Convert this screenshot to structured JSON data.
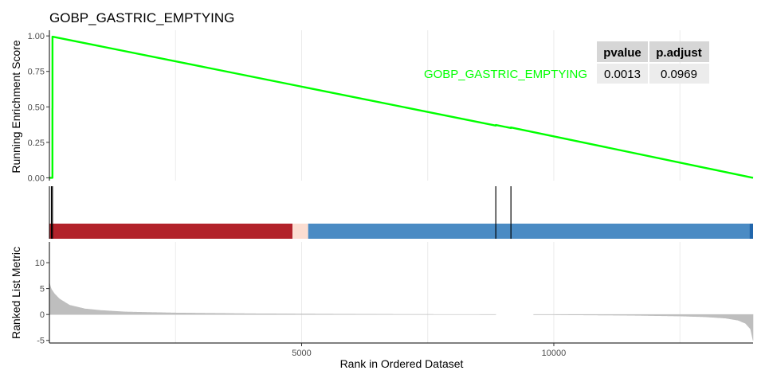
{
  "chart_data": {
    "type": "line",
    "title": "GOBP_GASTRIC_EMPTYING",
    "xlabel": "Rank in Ordered Dataset",
    "x_ticks": [
      5000,
      10000
    ],
    "xlim": [
      0,
      13950
    ],
    "colors": {
      "es_line": "#00FF00",
      "hits": "#000000",
      "bar_red": "#B2222A",
      "bar_light": "#FBDDD1",
      "bar_blue": "#4A8BC4",
      "bar_blue_dark": "#2166AC",
      "metric_fill": "#BEBEBE",
      "grid": "#EBEBEB"
    },
    "panels": {
      "running_es": {
        "ylabel": "Running Enrichment Score",
        "ylim": [
          -0.02,
          1.04
        ],
        "y_ticks": [
          "0.00",
          "0.25",
          "0.50",
          "0.75",
          "1.00"
        ],
        "x": [
          0,
          60,
          60,
          61,
          61,
          8850,
          8851,
          9150,
          9151,
          13950
        ],
        "y": [
          0.0,
          0.0,
          0.49,
          0.49,
          0.995,
          0.368,
          0.372,
          0.351,
          0.355,
          0.0
        ]
      },
      "hits": {
        "positions": [
          40,
          61,
          8850,
          9150
        ]
      },
      "ranked_metric": {
        "ylabel": "Ranked List Metric",
        "ylim": [
          -5.5,
          14
        ],
        "y_ticks": [
          -5,
          0,
          5,
          10
        ],
        "gap_x": [
          8850,
          9600
        ],
        "curve_x": [
          0,
          30,
          100,
          200,
          400,
          700,
          1000,
          1500,
          2500,
          4000,
          6000,
          8000,
          10000,
          11500,
          12500,
          13000,
          13400,
          13650,
          13800,
          13900,
          13950
        ],
        "curve_y": [
          6.2,
          5.0,
          4.0,
          3.0,
          1.8,
          1.1,
          0.8,
          0.5,
          0.3,
          0.15,
          0.05,
          0.0,
          -0.05,
          -0.15,
          -0.3,
          -0.45,
          -0.7,
          -1.1,
          -1.7,
          -2.8,
          -5.0
        ]
      }
    },
    "color_bar": [
      {
        "from": 0,
        "to": 4820,
        "color": "bar_red"
      },
      {
        "from": 4820,
        "to": 5130,
        "color": "bar_light"
      },
      {
        "from": 5130,
        "to": 13880,
        "color": "bar_blue"
      },
      {
        "from": 13880,
        "to": 13950,
        "color": "bar_blue_dark"
      }
    ],
    "legend": {
      "gene_set_label": "GOBP_GASTRIC_EMPTYING",
      "table_headers": [
        "pvalue",
        "p.adjust"
      ],
      "table_values": [
        "0.0013",
        "0.0969"
      ]
    }
  }
}
